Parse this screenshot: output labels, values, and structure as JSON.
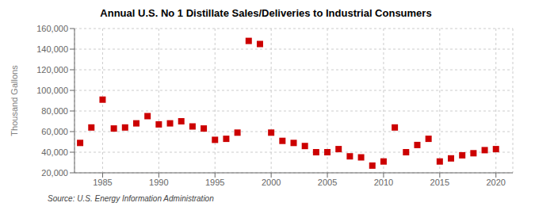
{
  "chart_data": {
    "type": "scatter",
    "title": "Annual U.S. No 1 Distillate Sales/Deliveries to Industrial Consumers",
    "ylabel": "Thousand Gallons",
    "annotations": [
      "Source: U.S. Energy Information Administration"
    ],
    "x": [
      1983,
      1984,
      1985,
      1986,
      1987,
      1988,
      1989,
      1990,
      1991,
      1992,
      1993,
      1994,
      1995,
      1996,
      1997,
      1998,
      1999,
      2000,
      2001,
      2002,
      2003,
      2004,
      2005,
      2006,
      2007,
      2008,
      2009,
      2010,
      2011,
      2012,
      2013,
      2014,
      2015,
      2016,
      2017,
      2018,
      2019,
      2020
    ],
    "values": [
      49000,
      64000,
      91000,
      63000,
      64000,
      68000,
      75000,
      67000,
      68000,
      70000,
      65000,
      63000,
      52000,
      53000,
      59000,
      148000,
      145000,
      59000,
      51000,
      49000,
      46000,
      40000,
      40000,
      43000,
      36000,
      35000,
      27000,
      31000,
      64000,
      40000,
      47000,
      53000,
      31000,
      34000,
      37000,
      39000,
      42000,
      43000
    ],
    "color": "#CC0000",
    "marker": "square",
    "xlim": [
      1982.5,
      2021.5
    ],
    "xticks": [
      1985,
      1990,
      1995,
      2000,
      2005,
      2010,
      2015,
      2020
    ],
    "ylim": [
      20000,
      160000
    ],
    "yticks": [
      {
        "value": 20000,
        "label": "20,000"
      },
      {
        "value": 40000,
        "label": "40,000"
      },
      {
        "value": 60000,
        "label": "60,000"
      },
      {
        "value": 80000,
        "label": "80,000"
      },
      {
        "value": 100000,
        "label": "100,000"
      },
      {
        "value": 120000,
        "label": "120,000"
      },
      {
        "value": 140000,
        "label": "140,000"
      },
      {
        "value": 160000,
        "label": "160,000"
      }
    ],
    "grid": true
  }
}
